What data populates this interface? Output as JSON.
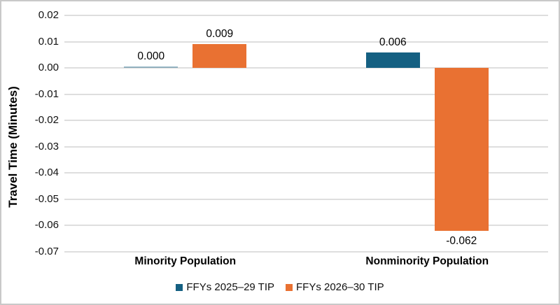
{
  "frame": {
    "background": "#ffffff",
    "border_color": "#c9c9c9"
  },
  "chart_data": {
    "type": "bar",
    "title": "",
    "xlabel": "",
    "ylabel": "Travel Time (Minutes)",
    "categories": [
      "Minority Population",
      "Nonminority Population"
    ],
    "series": [
      {
        "name": "FFYs 2025–29 TIP",
        "color": "#156082",
        "values": [
          0.0,
          0.006
        ],
        "value_labels": [
          "0.000",
          "0.006"
        ]
      },
      {
        "name": "FFYs 2026–30 TIP",
        "color": "#E97132",
        "values": [
          0.009,
          -0.062
        ],
        "value_labels": [
          "0.009",
          "-0.062"
        ]
      }
    ],
    "ylim": [
      -0.07,
      0.02
    ],
    "ytick_step": 0.01,
    "ytick_labels": [
      "0.02",
      "0.01",
      "0.00",
      "-0.01",
      "-0.02",
      "-0.03",
      "-0.04",
      "-0.05",
      "-0.06",
      "-0.07"
    ],
    "grid": true,
    "gridline_color": "#dedede",
    "legend_position": "bottom",
    "value_label_decimals": 3
  }
}
